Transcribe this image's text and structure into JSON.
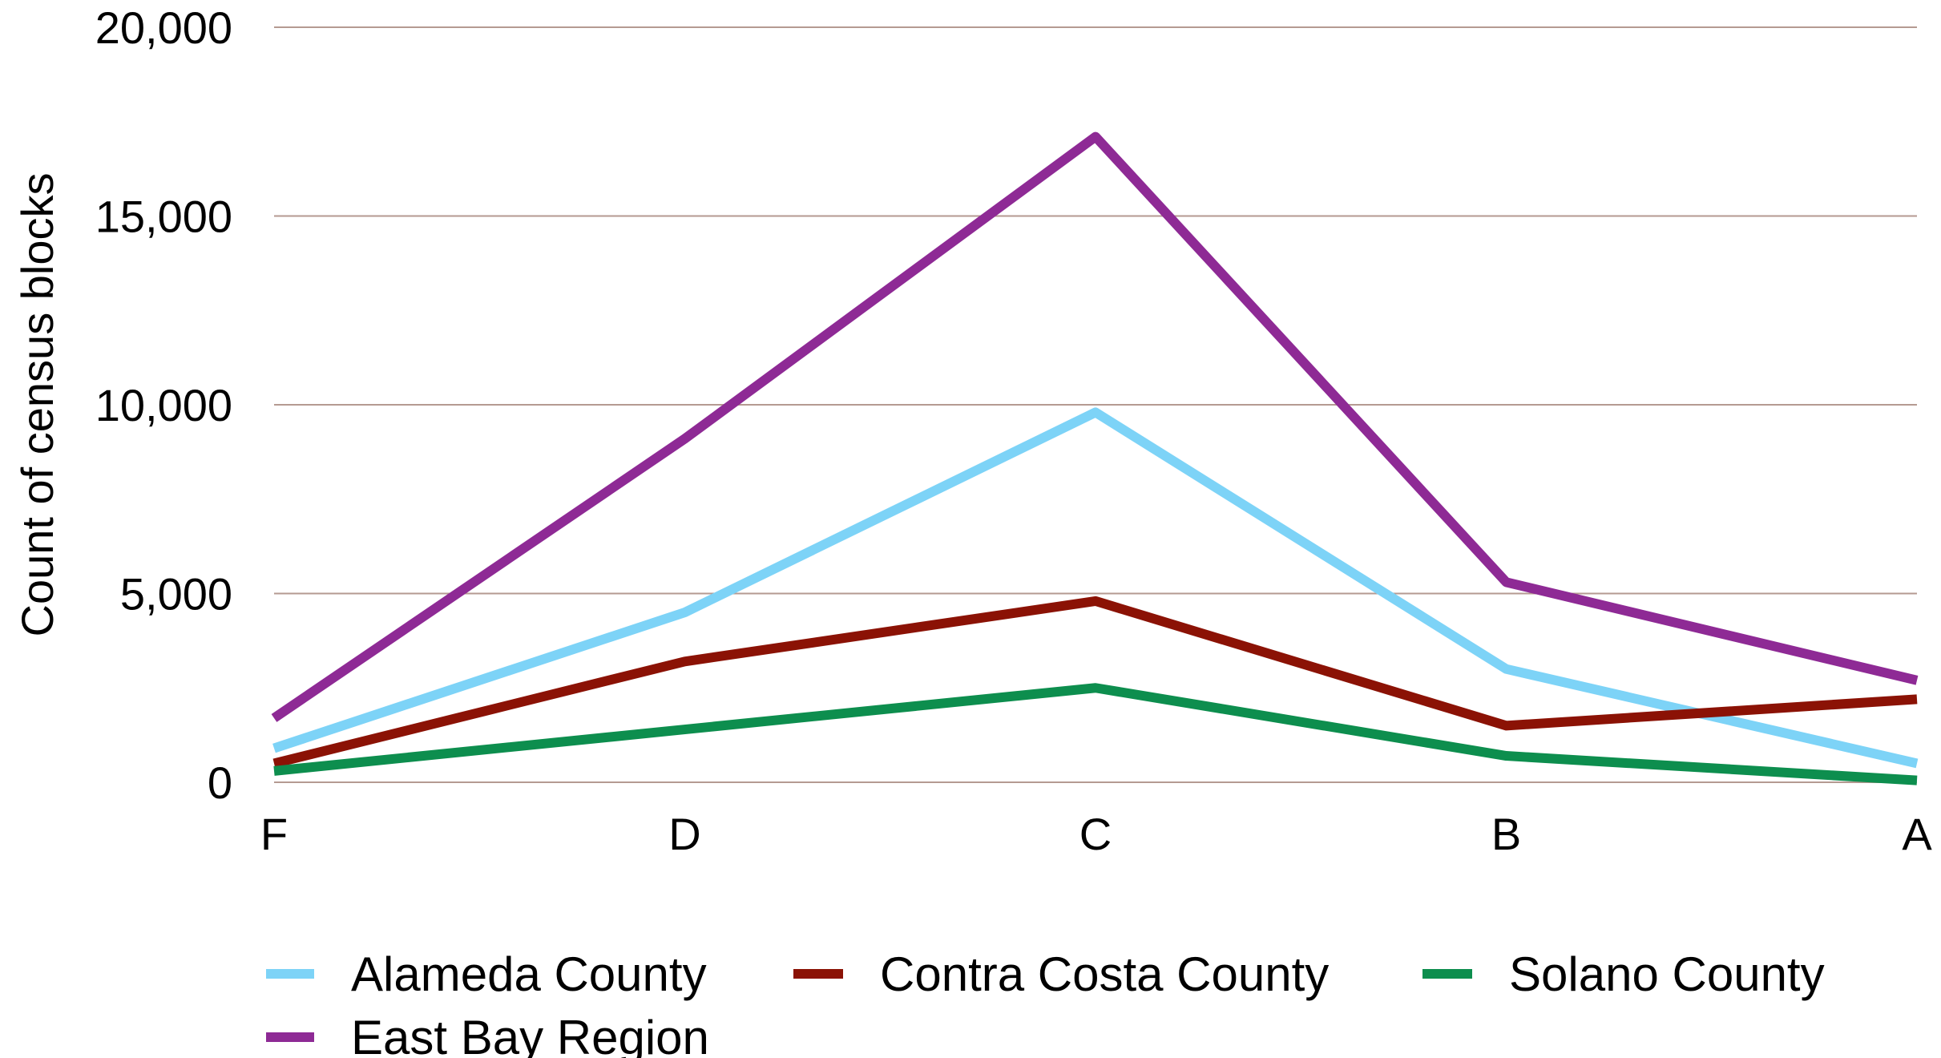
{
  "chart_data": {
    "type": "line",
    "title": "",
    "xlabel": "",
    "ylabel": "Count of census blocks",
    "categories": [
      "F",
      "D",
      "C",
      "B",
      "A"
    ],
    "ylim": [
      0,
      20000
    ],
    "yticks": [
      0,
      5000,
      10000,
      15000,
      20000
    ],
    "ytick_labels": [
      "0",
      "5,000",
      "10,000",
      "15,000",
      "20,000"
    ],
    "grid": true,
    "legend_position": "bottom",
    "series": [
      {
        "name": "Alameda County",
        "color": "#7dd3f7",
        "values": [
          900,
          4500,
          9800,
          3000,
          500
        ]
      },
      {
        "name": "Contra Costa County",
        "color": "#8b1205",
        "values": [
          500,
          3200,
          4800,
          1500,
          2200
        ]
      },
      {
        "name": "Solano County",
        "color": "#0d8e4e",
        "values": [
          300,
          1400,
          2500,
          700,
          50
        ]
      },
      {
        "name": "East Bay Region",
        "color": "#8e2a95",
        "values": [
          1700,
          9100,
          17100,
          5300,
          2700
        ]
      }
    ]
  }
}
